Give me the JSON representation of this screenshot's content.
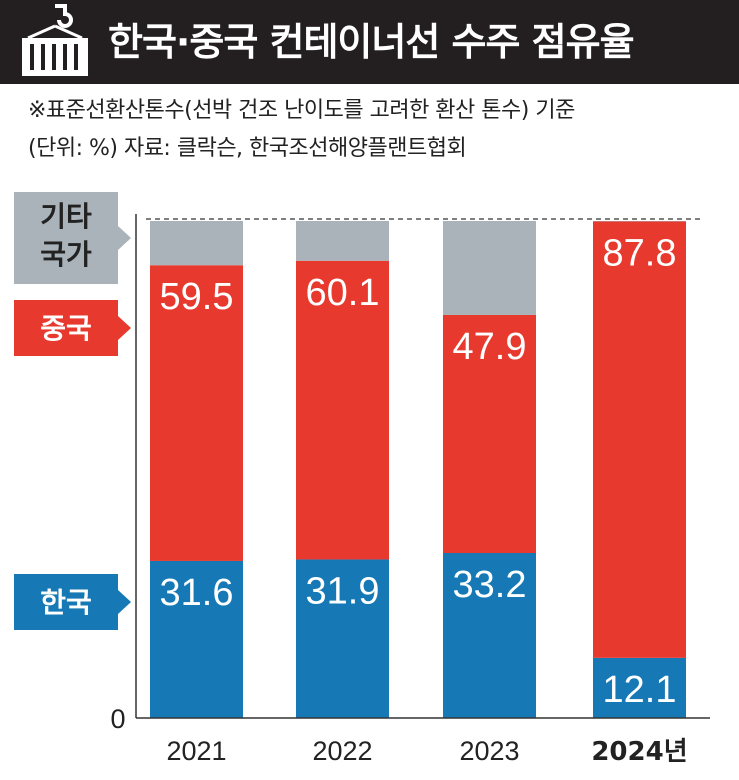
{
  "title": "한국·중국 컨테이너선 수주 점유율",
  "notes": {
    "line1": "※표준선환산톤수(선박 건조 난이도를 고려한 환산 톤수) 기준",
    "line2": "(단위: %) 자료: 클락슨, 한국조선해양플랜트협회"
  },
  "legend": {
    "other": [
      "기타",
      "국가"
    ],
    "china": "중국",
    "korea": "한국"
  },
  "colors": {
    "korea": "#1679b5",
    "china": "#e7392e",
    "other": "#a9b3b9",
    "header_bg": "#231f20"
  },
  "chart_data": {
    "type": "bar",
    "stacked": true,
    "categories": [
      "2021",
      "2022",
      "2023",
      "2024년"
    ],
    "series": [
      {
        "name": "한국",
        "values": [
          31.6,
          31.9,
          33.2,
          12.1
        ],
        "labels": [
          "31.6",
          "31.9",
          "33.2",
          "12.1"
        ]
      },
      {
        "name": "중국",
        "values": [
          59.5,
          60.1,
          47.9,
          87.8
        ],
        "labels": [
          "59.5",
          "60.1",
          "47.9",
          "87.8"
        ]
      },
      {
        "name": "기타 국가",
        "values": [
          8.9,
          8.0,
          18.9,
          0.1
        ]
      }
    ],
    "y_min_label": "0",
    "ylim": [
      0,
      100
    ],
    "unit": "%"
  }
}
